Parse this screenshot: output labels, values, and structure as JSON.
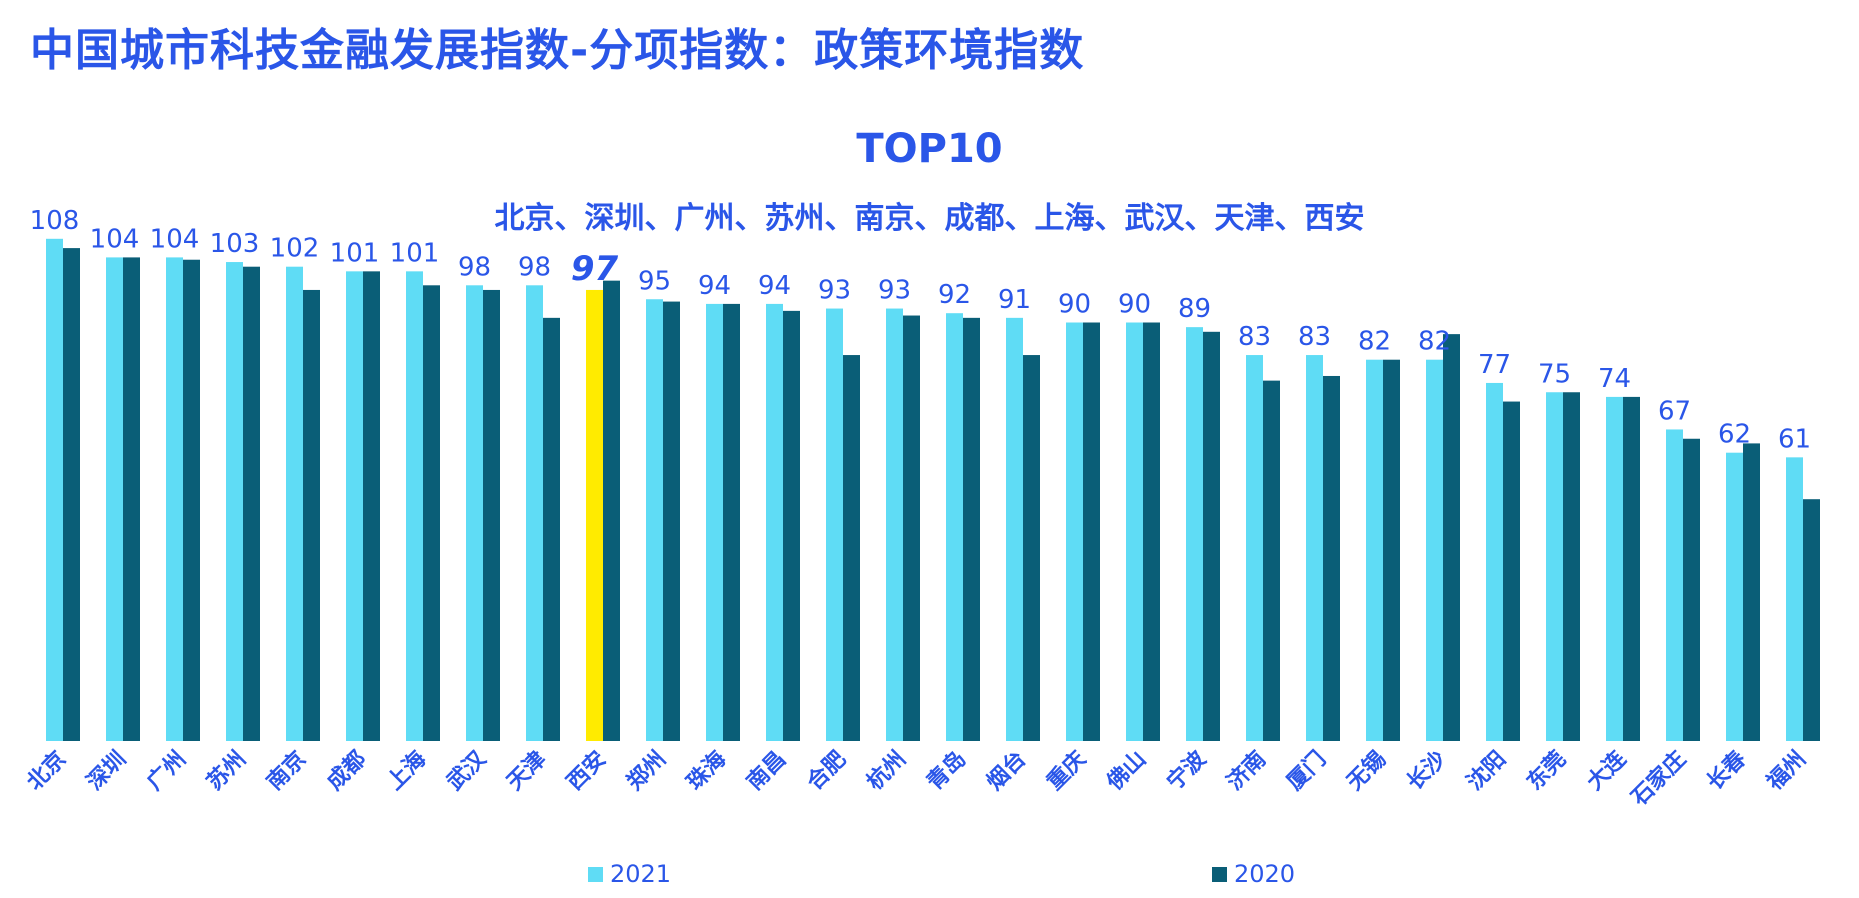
{
  "header": {
    "title": "中国城市科技金融发展指数-分项指数：政策环境指数",
    "top_label": "TOP10",
    "top_cities": "北京、深圳、广州、苏州、南京、成都、上海、武汉、天津、西安"
  },
  "colors": {
    "series_2021": "#5fdcf5",
    "series_2020": "#0a5e77",
    "highlight": "#ffeb00",
    "text": "#2a56e8"
  },
  "chart_data": {
    "type": "bar",
    "categories": [
      "北京",
      "深圳",
      "广州",
      "苏州",
      "南京",
      "成都",
      "上海",
      "武汉",
      "天津",
      "西安",
      "郑州",
      "珠海",
      "南昌",
      "合肥",
      "杭州",
      "青岛",
      "烟台",
      "重庆",
      "佛山",
      "宁波",
      "济南",
      "厦门",
      "无锡",
      "长沙",
      "沈阳",
      "东莞",
      "大连",
      "石家庄",
      "长春",
      "福州"
    ],
    "series": [
      {
        "name": "2021",
        "values": [
          108,
          104,
          104,
          103,
          102,
          101,
          101,
          98,
          98,
          97,
          95,
          94,
          94,
          93,
          93,
          92,
          91,
          90,
          90,
          89,
          83,
          83,
          82,
          82,
          77,
          75,
          74,
          67,
          62,
          61
        ]
      },
      {
        "name": "2020",
        "values": [
          106,
          104,
          103.5,
          102,
          97,
          101,
          98,
          97,
          91,
          99,
          94.5,
          94,
          92.5,
          83,
          91.5,
          91,
          83,
          90,
          90,
          88,
          77.5,
          78.5,
          82,
          87.5,
          73,
          75,
          74,
          65,
          64,
          52
        ]
      }
    ],
    "highlight_category": "西安",
    "ylim": [
      0,
      120
    ],
    "grid": false,
    "legend_position": "bottom"
  }
}
